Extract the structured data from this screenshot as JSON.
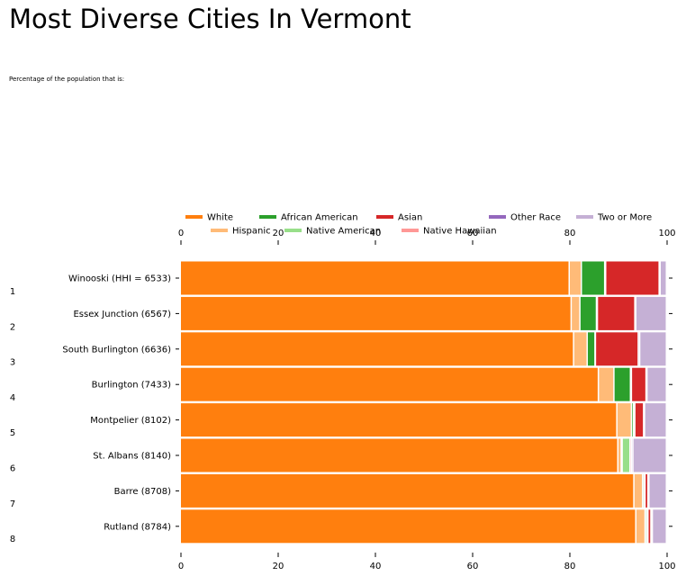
{
  "title": "Most Diverse Cities In Vermont",
  "subtitle": "Percentage of the population that is:",
  "chart_data": {
    "type": "bar",
    "orientation": "horizontal",
    "stacked": true,
    "xlim": [
      0,
      100
    ],
    "ticks": [
      "0",
      "20",
      "40",
      "60",
      "80",
      "100"
    ],
    "top_ticks": [
      "0",
      "20",
      "40",
      "60",
      "80",
      "100"
    ],
    "legend_position": "top",
    "grid": false,
    "row_numbers": [
      "1",
      "2",
      "3",
      "4",
      "5",
      "6",
      "7",
      "8"
    ],
    "categories": [
      "Winooski (HHI = 6533)",
      "Essex Junction (6567)",
      "South Burlington (6636)",
      "Burlington (7433)",
      "Montpelier (8102)",
      "St. Albans (8140)",
      "Barre (8708)",
      "Rutland (8784)"
    ],
    "series": [
      {
        "name": "White",
        "color": "#ff7f0e",
        "values": [
          80.0,
          80.4,
          80.9,
          86.0,
          89.8,
          90.0,
          93.3,
          93.7
        ]
      },
      {
        "name": "Hispanic",
        "color": "#ffbb78",
        "values": [
          2.5,
          1.8,
          2.8,
          3.2,
          3.0,
          0.7,
          1.8,
          1.9
        ]
      },
      {
        "name": "African American",
        "color": "#2ca02c",
        "values": [
          4.8,
          3.4,
          1.6,
          3.4,
          0.4,
          0.2,
          0.3,
          0.3
        ]
      },
      {
        "name": "Native American",
        "color": "#98df8a",
        "values": [
          0.2,
          0.2,
          0.1,
          0.2,
          0.3,
          1.6,
          0.2,
          0.3
        ]
      },
      {
        "name": "Asian",
        "color": "#d62728",
        "values": [
          11.0,
          7.7,
          8.8,
          3.0,
          1.8,
          0.3,
          0.6,
          0.6
        ]
      },
      {
        "name": "Native Hawaiian",
        "color": "#ff9896",
        "values": [
          0.0,
          0.0,
          0.0,
          0.0,
          0.0,
          0.0,
          0.0,
          0.1
        ]
      },
      {
        "name": "Other Race",
        "color": "#9467bd",
        "values": [
          0.2,
          0.2,
          0.3,
          0.2,
          0.2,
          0.3,
          0.2,
          0.2
        ]
      },
      {
        "name": "Two or More",
        "color": "#c5b0d5",
        "values": [
          1.3,
          6.3,
          5.5,
          4.0,
          4.5,
          6.9,
          3.6,
          2.9
        ]
      }
    ]
  }
}
